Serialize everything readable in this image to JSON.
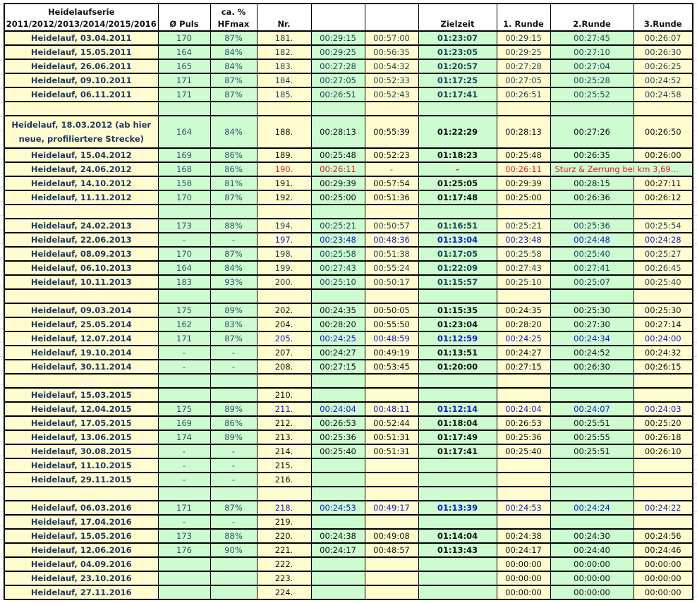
{
  "headers": {
    "name": "Heidelaufserie 2011/2012/2013/2014/2015/2016",
    "puls": "Ø Puls",
    "hf": "ca. % HFmax",
    "nr": "Nr.",
    "t1": "",
    "t2": "",
    "ziel": "Zielzeit",
    "r1": "1. Runde",
    "r2": "2.Runde",
    "r3": "3.Runde"
  },
  "colors": {
    "yellow": "#fffdd0",
    "green": "#ccfcd0",
    "blue_highlight": "#1818d0",
    "red_highlight": "#e02020"
  },
  "rows": [
    {
      "tone": "dark",
      "name": "Heidelauf, 03.04.2011",
      "puls": "170",
      "hf": "87%",
      "nr": "181.",
      "t1": "00:29:15",
      "t2": "00:57:00",
      "ziel": "01:23:07",
      "r1": "00:29:15",
      "r2": "00:27:45",
      "r3": "00:26:07"
    },
    {
      "tone": "dark",
      "name": "Heidelauf, 15.05.2011",
      "puls": "164",
      "hf": "84%",
      "nr": "182.",
      "t1": "00:29:25",
      "t2": "00:56:35",
      "ziel": "01:23:05",
      "r1": "00:29:25",
      "r2": "00:27:10",
      "r3": "00:26:30"
    },
    {
      "tone": "dark",
      "name": "Heidelauf, 26.06.2011",
      "puls": "165",
      "hf": "84%",
      "nr": "183.",
      "t1": "00:27:28",
      "t2": "00:54:32",
      "ziel": "01:20:57",
      "r1": "00:27:28",
      "r2": "00:27:04",
      "r3": "00:26:25"
    },
    {
      "tone": "dark",
      "name": "Heidelauf, 09.10.2011",
      "puls": "171",
      "hf": "87%",
      "nr": "184.",
      "t1": "00:27:05",
      "t2": "00:52:33",
      "ziel": "01:17:25",
      "r1": "00:27:05",
      "r2": "00:25:28",
      "r3": "00:24:52"
    },
    {
      "tone": "dark",
      "name": "Heidelauf, 06.11.2011",
      "puls": "171",
      "hf": "87%",
      "nr": "185.",
      "t1": "00:26:51",
      "t2": "00:52:43",
      "ziel": "01:17:41",
      "r1": "00:26:51",
      "r2": "00:25:52",
      "r3": "00:24:58"
    },
    {
      "tone": "blank"
    },
    {
      "tone": "black",
      "tall": true,
      "name": "Heidelauf, 18.03.2012 (ab hier neue, profiliertere  Strecke)",
      "puls": "164",
      "hf": "84%",
      "nr": "188.",
      "t1": "00:28:13",
      "t2": "00:55:39",
      "ziel": "01:22:29",
      "r1": "00:28:13",
      "r2": "00:27:26",
      "r3": "00:26:50"
    },
    {
      "tone": "black",
      "name": "Heidelauf, 15.04.2012",
      "puls": "169",
      "hf": "86%",
      "nr": "189.",
      "t1": "00:25:48",
      "t2": "00:52:23",
      "ziel": "01:18:23",
      "r1": "00:25:48",
      "r2": "00:26:35",
      "r3": "00:26:00"
    },
    {
      "tone": "red",
      "name": "Heidelauf, 24.06.2012",
      "puls": "168",
      "hf": "86%",
      "nr": "190.",
      "t1": "00:26:11",
      "t2": "-",
      "ziel": "-",
      "r1": "00:26:11",
      "note": "Sturz & Zerrung bei km 3,69..."
    },
    {
      "tone": "black",
      "name": "Heidelauf, 14.10.2012",
      "puls": "158",
      "hf": "81%",
      "nr": "191.",
      "t1": "00:29:39",
      "t2": "00:57:54",
      "ziel": "01:25:05",
      "r1": "00:29:39",
      "r2": "00:28:15",
      "r3": "00:27:11"
    },
    {
      "tone": "black",
      "name": "Heidelauf, 11.11.2012",
      "puls": "170",
      "hf": "87%",
      "nr": "192.",
      "t1": "00:25:00",
      "t2": "00:51:36",
      "ziel": "01:17:48",
      "r1": "00:25:00",
      "r2": "00:26:36",
      "r3": "00:26:12"
    },
    {
      "tone": "blank"
    },
    {
      "tone": "dark",
      "name": "Heidelauf, 24.02.2013",
      "puls": "173",
      "hf": "88%",
      "nr": "194.",
      "t1": "00:25:21",
      "t2": "00:50:57",
      "ziel": "01:16:51",
      "r1": "00:25:21",
      "r2": "00:25:36",
      "r3": "00:25:54"
    },
    {
      "tone": "blue",
      "name": "Heidelauf, 22.06.2013",
      "puls": "-",
      "hf": "-",
      "nr": "197.",
      "t1": "00:23:48",
      "t2": "00:48:36",
      "ziel": "01:13:04",
      "r1": "00:23:48",
      "r2": "00:24:48",
      "r3": "00:24:28"
    },
    {
      "tone": "dark",
      "name": "Heidelauf, 08.09.2013",
      "puls": "170",
      "hf": "87%",
      "nr": "198.",
      "t1": "00:25:58",
      "t2": "00:51:38",
      "ziel": "01:17:05",
      "r1": "00:25:58",
      "r2": "00:25:40",
      "r3": "00:25:27"
    },
    {
      "tone": "dark",
      "name": "Heidelauf, 06.10.2013",
      "puls": "164",
      "hf": "84%",
      "nr": "199.",
      "t1": "00:27:43",
      "t2": "00:55:24",
      "ziel": "01:22:09",
      "r1": "00:27:43",
      "r2": "00:27:41",
      "r3": "00:26:45"
    },
    {
      "tone": "dark",
      "name": "Heidelauf, 10.11.2013",
      "puls": "183",
      "hf": "93%",
      "nr": "200.",
      "t1": "00:25:10",
      "t2": "00:50:17",
      "ziel": "01:15:57",
      "r1": "00:25:10",
      "r2": "00:25:07",
      "r3": "00:25:40"
    },
    {
      "tone": "blank"
    },
    {
      "tone": "black",
      "name": "Heidelauf, 09.03.2014",
      "puls": "175",
      "hf": "89%",
      "nr": "202.",
      "t1": "00:24:35",
      "t2": "00:50:05",
      "ziel": "01:15:35",
      "r1": "00:24:35",
      "r2": "00:25:30",
      "r3": "00:25:30"
    },
    {
      "tone": "black",
      "name": "Heidelauf, 25.05.2014",
      "puls": "162",
      "hf": "83%",
      "nr": "204.",
      "t1": "00:28:20",
      "t2": "00:55:50",
      "ziel": "01:23:04",
      "r1": "00:28:20",
      "r2": "00:27:30",
      "r3": "00:27:14"
    },
    {
      "tone": "blue",
      "name": "Heidelauf, 12.07.2014",
      "puls": "171",
      "hf": "87%",
      "nr": "205.",
      "t1": "00:24:25",
      "t2": "00:48:59",
      "ziel": "01:12:59",
      "r1": "00:24:25",
      "r2": "00:24:34",
      "r3": "00:24:00"
    },
    {
      "tone": "black",
      "name": "Heidelauf, 19.10.2014",
      "puls": "-",
      "hf": "-",
      "nr": "207.",
      "t1": "00:24:27",
      "t2": "00:49:19",
      "ziel": "01:13:51",
      "r1": "00:24:27",
      "r2": "00:24:52",
      "r3": "00:24:32"
    },
    {
      "tone": "black",
      "name": "Heidelauf, 30.11.2014",
      "puls": "-",
      "hf": "-",
      "nr": "208.",
      "t1": "00:27:15",
      "t2": "00:53:45",
      "ziel": "01:20:00",
      "r1": "00:27:15",
      "r2": "00:26:30",
      "r3": "00:26:15"
    },
    {
      "tone": "blank"
    },
    {
      "tone": "black",
      "name": "Heidelauf, 15.03.2015",
      "puls": "",
      "hf": "",
      "nr": "210."
    },
    {
      "tone": "blue",
      "name": "Heidelauf, 12.04.2015",
      "puls": "175",
      "hf": "89%",
      "nr": "211.",
      "t1": "00:24:04",
      "t2": "00:48:11",
      "ziel": "01:12:14",
      "r1": "00:24:04",
      "r2": "00:24:07",
      "r3": "00:24:03"
    },
    {
      "tone": "black",
      "name": "Heidelauf, 17.05.2015",
      "puls": "169",
      "hf": "86%",
      "nr": "212.",
      "t1": "00:26:53",
      "t2": "00:52:44",
      "ziel": "01:18:04",
      "r1": "00:26:53",
      "r2": "00:25:51",
      "r3": "00:25:20"
    },
    {
      "tone": "black",
      "name": "Heidelauf,  13.06.2015",
      "puls": "174",
      "hf": "89%",
      "nr": "213.",
      "t1": "00:25:36",
      "t2": "00:51:31",
      "ziel": "01:17:49",
      "r1": "00:25:36",
      "r2": "00:25:55",
      "r3": "00:26:18"
    },
    {
      "tone": "black",
      "name": "Heidelauf, 30.08.2015",
      "puls": "-",
      "hf": "-",
      "nr": "214.",
      "t1": "00:25:40",
      "t2": "00:51:31",
      "ziel": "01:17:41",
      "r1": "00:25:40",
      "r2": "00:25:51",
      "r3": "00:26:10"
    },
    {
      "tone": "black",
      "name": "Heidelauf,  11.10.2015",
      "puls": "-",
      "hf": "-",
      "nr": "215."
    },
    {
      "tone": "black",
      "name": "Heidelauf, 29.11.2015",
      "puls": "-",
      "hf": "-",
      "nr": "216."
    },
    {
      "tone": "blank"
    },
    {
      "tone": "blue",
      "name": "Heidelauf, 06.03.2016",
      "puls": "171",
      "hf": "87%",
      "nr": "218.",
      "t1": "00:24:53",
      "t2": "00:49:17",
      "ziel": "01:13:39",
      "r1": "00:24:53",
      "r2": "00:24:24",
      "r3": "00:24:22"
    },
    {
      "tone": "black",
      "name": "Heidelauf, 17.04.2016",
      "puls": "-",
      "hf": "-",
      "nr": "219."
    },
    {
      "tone": "black",
      "name": "Heidelauf,  15.05.2016",
      "puls": "173",
      "hf": "88%",
      "nr": "220.",
      "t1": "00:24:38",
      "t2": "00:49:08",
      "ziel": "01:14:04",
      "r1": "00:24:38",
      "r2": "00:24:30",
      "r3": "00:24:56"
    },
    {
      "tone": "black",
      "name": "Heidelauf, 12.06.2016",
      "puls": "176",
      "hf": "90%",
      "nr": "221.",
      "t1": "00:24:17",
      "t2": "00:48:57",
      "ziel": "01:13:43",
      "r1": "00:24:17",
      "r2": "00:24:40",
      "r3": "00:24:46"
    },
    {
      "tone": "black",
      "name": "Heidelauf,  04.09.2016",
      "puls": "",
      "hf": "",
      "nr": "222.",
      "r1": "00:00:00",
      "r2": "00:00:00",
      "r3": "00:00:00"
    },
    {
      "tone": "black",
      "name": "Heidelauf, 23.10.2016",
      "puls": "",
      "hf": "",
      "nr": "223.",
      "r1": "00:00:00",
      "r2": "00:00:00",
      "r3": "00:00:00"
    },
    {
      "tone": "black",
      "name": "Heidelauf, 27.11.2016",
      "puls": "",
      "hf": "",
      "nr": "224.",
      "r1": "00:00:00",
      "r2": "00:00:00",
      "r3": "00:00:00"
    }
  ]
}
